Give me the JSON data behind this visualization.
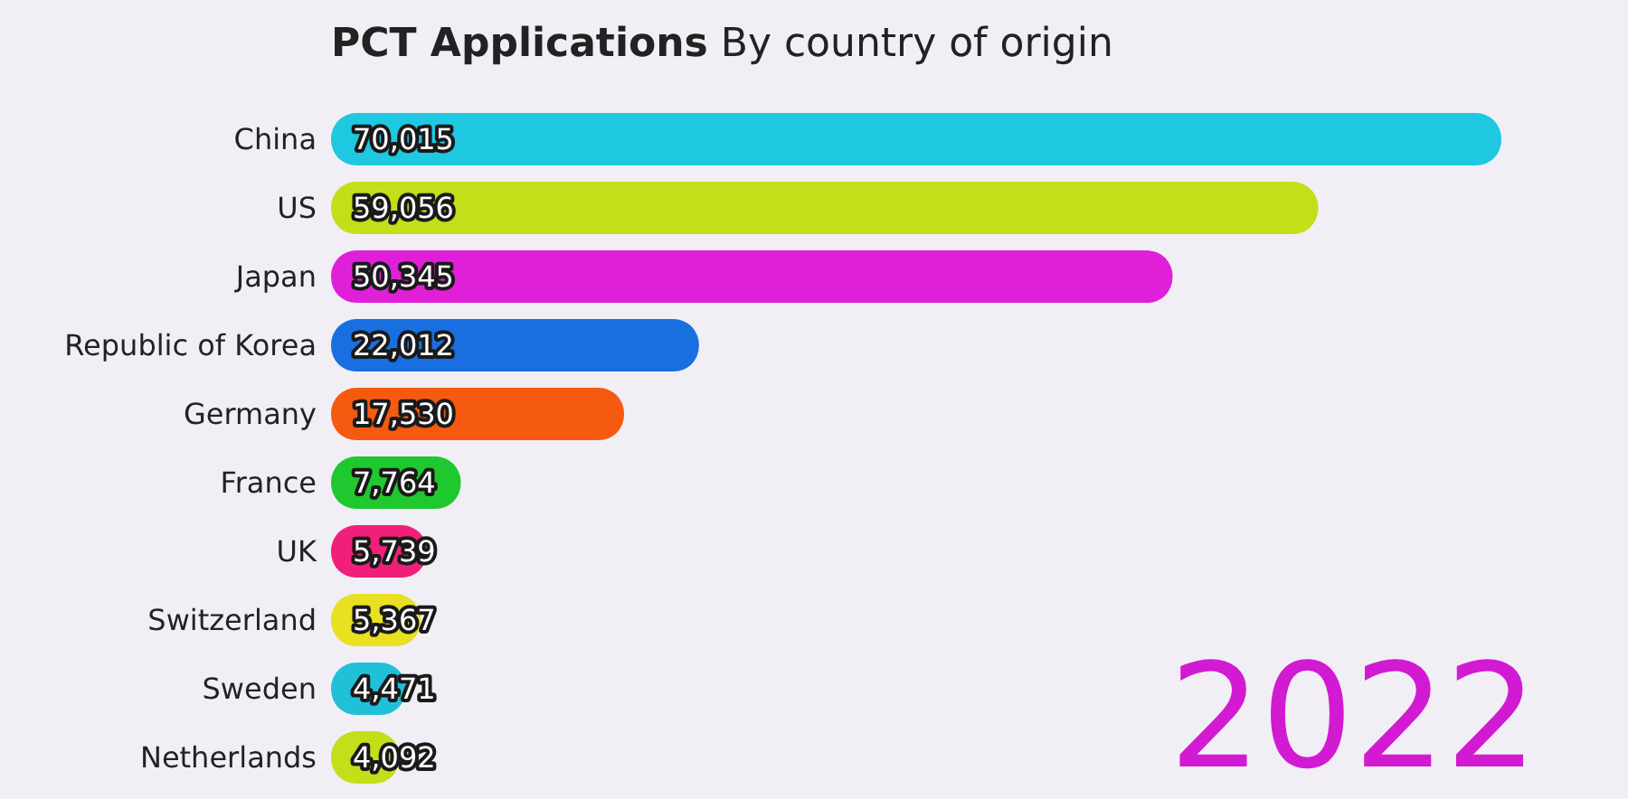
{
  "chart_data": {
    "type": "bar",
    "orientation": "horizontal",
    "title": "PCT Applications",
    "subtitle": "By country of origin",
    "categories": [
      "China",
      "US",
      "Japan",
      "Republic of Korea",
      "Germany",
      "France",
      "UK",
      "Switzerland",
      "Sweden",
      "Netherlands"
    ],
    "values": [
      70015,
      59056,
      50345,
      22012,
      17530,
      7764,
      5739,
      5367,
      4471,
      4092
    ],
    "colors": [
      "#1ec8e0",
      "#c4de1a",
      "#e020d8",
      "#1a6fe0",
      "#f55a10",
      "#20c830",
      "#f0207a",
      "#e8e020",
      "#20c0d8",
      "#c4de1a"
    ],
    "value_labels": [
      "70,015",
      "59,056",
      "50,345",
      "22,012",
      "17,530",
      "7,764",
      "5,739",
      "5,367",
      "4,471",
      "4,092"
    ],
    "annotations": [
      "2022"
    ]
  }
}
